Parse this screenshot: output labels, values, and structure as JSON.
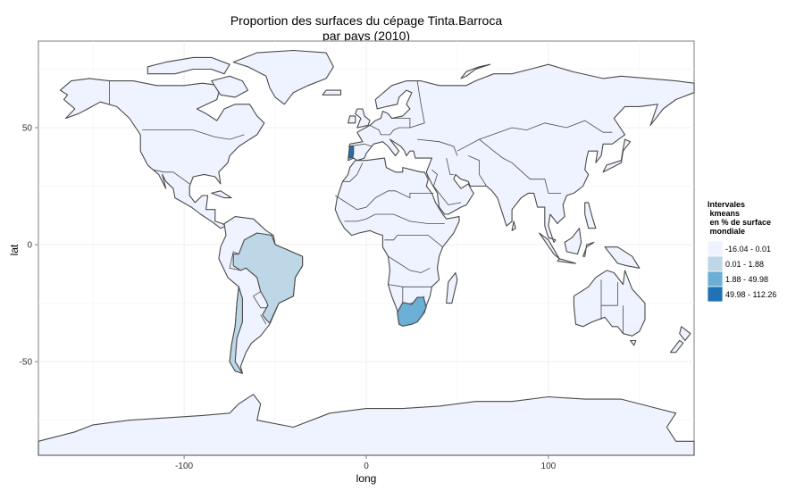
{
  "chart_data": {
    "type": "choropleth",
    "title_line1": "Proportion des surfaces du cépage Tinta.Barroca",
    "title_line2": "par pays (2010)",
    "xlabel": "long",
    "ylabel": "lat",
    "xlim": [
      -180,
      180
    ],
    "ylim": [
      -90,
      87
    ],
    "x_ticks": [
      -100,
      0,
      100
    ],
    "y_ticks": [
      -50,
      0,
      50
    ],
    "grid": true,
    "legend": {
      "placement": "right",
      "title_lines": [
        "Intervales",
        " kmeans",
        " en % de surface",
        " mondiale"
      ],
      "classes": [
        {
          "label": "-16.04 - 0.01",
          "color": "#eff3ff"
        },
        {
          "label": "0.01 - 1.88",
          "color": "#bdd7e7"
        },
        {
          "label": "1.88 - 49.98",
          "color": "#6baed6"
        },
        {
          "label": "49.98 - 112.26",
          "color": "#2171b5"
        }
      ]
    },
    "highlighted_regions": [
      {
        "region": "Portugal",
        "class": 3
      },
      {
        "region": "South Africa",
        "class": 2
      },
      {
        "region": "Brazil",
        "class": 1
      },
      {
        "region": "Chile",
        "class": 1
      }
    ]
  }
}
